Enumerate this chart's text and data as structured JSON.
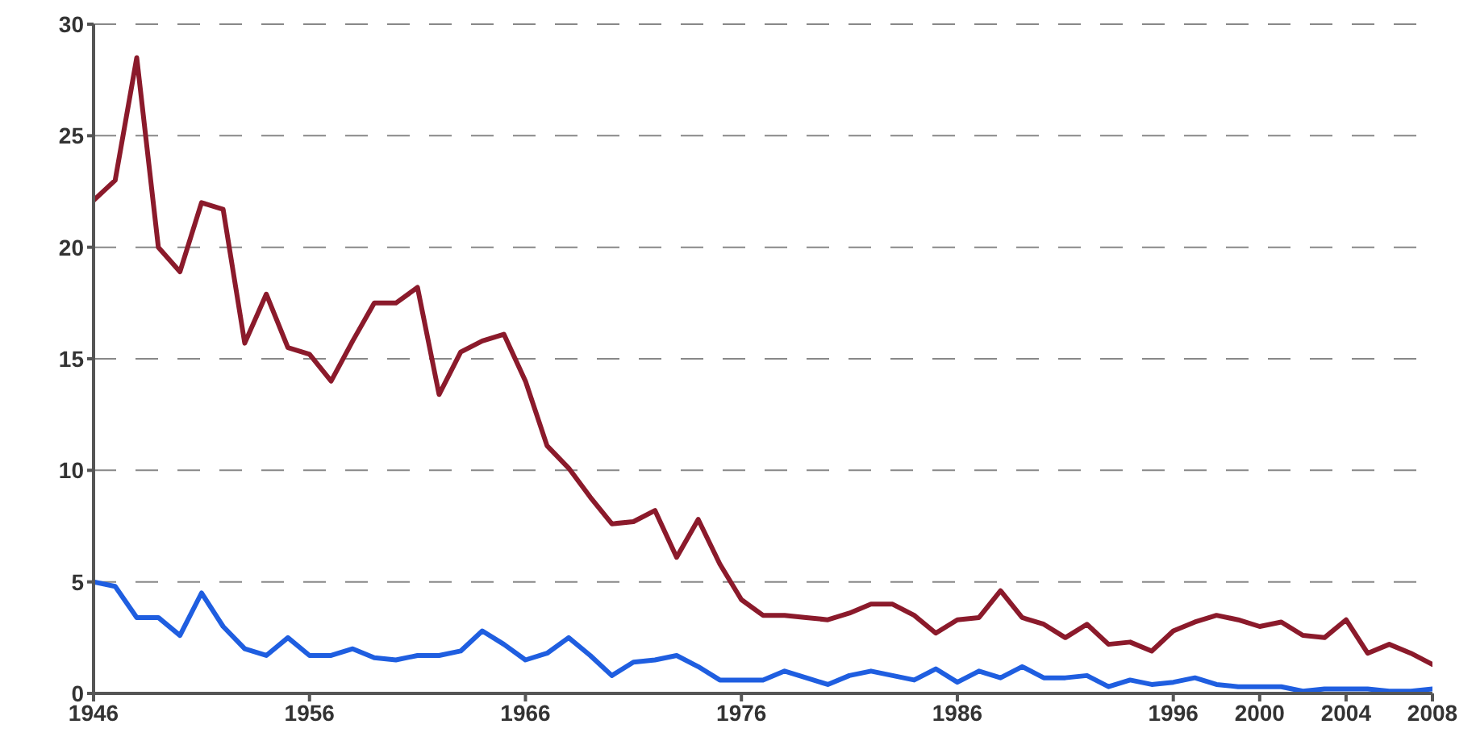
{
  "chart_data": {
    "type": "line",
    "x": [
      1946,
      1947,
      1948,
      1949,
      1950,
      1951,
      1952,
      1953,
      1954,
      1955,
      1956,
      1957,
      1958,
      1959,
      1960,
      1961,
      1962,
      1963,
      1964,
      1965,
      1966,
      1967,
      1968,
      1969,
      1970,
      1971,
      1972,
      1973,
      1974,
      1975,
      1976,
      1977,
      1978,
      1979,
      1980,
      1981,
      1982,
      1983,
      1984,
      1985,
      1986,
      1987,
      1988,
      1989,
      1990,
      1991,
      1992,
      1993,
      1994,
      1995,
      1996,
      1997,
      1998,
      1999,
      2000,
      2001,
      2002,
      2003,
      2004,
      2005,
      2006,
      2007,
      2008
    ],
    "series": [
      {
        "color": "#8b1a2b",
        "values": [
          22.1,
          23.0,
          28.5,
          20.0,
          18.9,
          22.0,
          21.7,
          15.7,
          17.9,
          15.5,
          15.2,
          14.0,
          15.8,
          17.5,
          17.5,
          18.2,
          13.4,
          15.3,
          15.8,
          16.1,
          14.0,
          11.1,
          10.1,
          8.8,
          7.6,
          7.7,
          8.2,
          6.1,
          7.8,
          5.8,
          4.2,
          3.5,
          3.5,
          3.4,
          3.3,
          3.6,
          4.0,
          4.0,
          3.5,
          2.7,
          3.3,
          3.4,
          4.6,
          3.4,
          3.1,
          2.5,
          3.1,
          2.2,
          2.3,
          1.9,
          2.8,
          3.2,
          3.5,
          3.3,
          3.0,
          3.2,
          2.6,
          2.5,
          3.3,
          1.8,
          2.2,
          1.8,
          1.3
        ]
      },
      {
        "color": "#1f5ee0",
        "values": [
          5.0,
          4.8,
          3.4,
          3.4,
          2.6,
          4.5,
          3.0,
          2.0,
          1.7,
          2.5,
          1.7,
          1.7,
          2.0,
          1.6,
          1.5,
          1.7,
          1.7,
          1.9,
          2.8,
          2.2,
          1.5,
          1.8,
          2.5,
          1.7,
          0.8,
          1.4,
          1.5,
          1.7,
          1.2,
          0.6,
          0.6,
          0.6,
          1.0,
          0.7,
          0.4,
          0.8,
          1.0,
          0.8,
          0.6,
          1.1,
          0.5,
          1.0,
          0.7,
          1.2,
          0.7,
          0.7,
          0.8,
          0.3,
          0.6,
          0.4,
          0.5,
          0.7,
          0.4,
          0.3,
          0.3,
          0.3,
          0.1,
          0.2,
          0.2,
          0.2,
          0.1,
          0.1,
          0.2
        ]
      }
    ],
    "xlim": [
      1946,
      2008
    ],
    "xticks": [
      1946,
      1956,
      1966,
      1976,
      1986,
      1996,
      2000,
      2004,
      2008
    ],
    "ylim": [
      0,
      30
    ],
    "yticks": [
      0,
      5,
      10,
      15,
      20,
      25,
      30
    ],
    "grid": "y",
    "legend": false,
    "marker": "none",
    "line_style": "solid"
  }
}
